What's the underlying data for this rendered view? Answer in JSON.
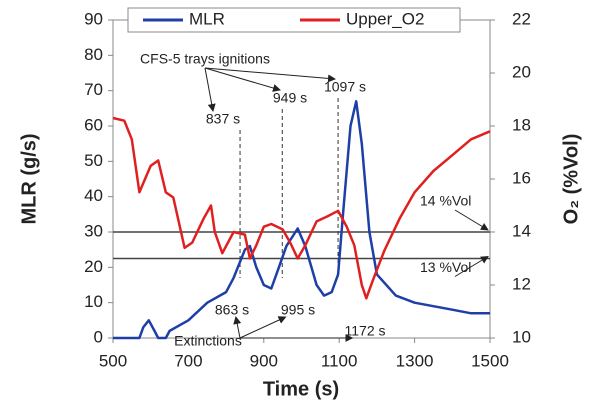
{
  "chart_data": {
    "type": "line",
    "xlabel": "Time (s)",
    "ylabel": "MLR (g/s)",
    "y2label": "O₂ (%Vol)",
    "xlim": [
      500,
      1500
    ],
    "xticks": [
      500,
      700,
      900,
      1100,
      1300,
      1500
    ],
    "ylim": [
      0,
      90
    ],
    "yticks": [
      0,
      10,
      20,
      30,
      40,
      50,
      60,
      70,
      80,
      90
    ],
    "y2lim": [
      10,
      22
    ],
    "y2ticks": [
      10,
      12,
      14,
      16,
      18,
      20,
      22
    ],
    "legend": "top",
    "series": [
      {
        "name": "MLR",
        "color": "#1f3fa8",
        "x": [
          500,
          570,
          580,
          595,
          610,
          620,
          640,
          650,
          700,
          750,
          800,
          820,
          850,
          863,
          880,
          900,
          920,
          940,
          960,
          990,
          1010,
          1040,
          1060,
          1080,
          1097,
          1110,
          1130,
          1145,
          1160,
          1180,
          1200,
          1250,
          1300,
          1350,
          1400,
          1450,
          1500
        ],
        "values": [
          0,
          0,
          3,
          5,
          2,
          0,
          0,
          2,
          5,
          10,
          13,
          17,
          25,
          26,
          20,
          15,
          14,
          20,
          26,
          31,
          26,
          15,
          12,
          13,
          18,
          35,
          60,
          67,
          55,
          30,
          18,
          12,
          10,
          9,
          8,
          7,
          7
        ]
      },
      {
        "name": "Upper_O2",
        "color": "#e02020",
        "axis": "y2",
        "x": [
          500,
          530,
          550,
          570,
          600,
          620,
          640,
          660,
          690,
          710,
          740,
          760,
          770,
          790,
          820,
          850,
          863,
          880,
          900,
          920,
          950,
          970,
          990,
          1010,
          1040,
          1070,
          1097,
          1120,
          1140,
          1160,
          1172,
          1190,
          1220,
          1260,
          1300,
          1350,
          1400,
          1450,
          1500
        ],
        "values": [
          18.3,
          18.2,
          17.5,
          15.5,
          16.5,
          16.7,
          15.5,
          15.3,
          13.4,
          13.6,
          14.5,
          15,
          14,
          13.2,
          14,
          13.9,
          13,
          13.5,
          14.2,
          14.3,
          14.1,
          13.6,
          13,
          13.5,
          14.4,
          14.6,
          14.8,
          14.2,
          13.5,
          12,
          11.5,
          12.2,
          13.3,
          14.5,
          15.5,
          16.3,
          16.9,
          17.5,
          17.8
        ]
      }
    ],
    "reference_lines": [
      {
        "value": 14,
        "label": "14 %Vol"
      },
      {
        "value": 13,
        "label": "13 %Vol"
      }
    ],
    "ignitions": {
      "label": "CFS-5 trays ignitions",
      "times": [
        837,
        949,
        1097
      ],
      "labels": [
        "837 s",
        "949 s",
        "1097 s"
      ]
    },
    "extinctions": {
      "label": "Extinctions",
      "times": [
        863,
        995,
        1172
      ],
      "labels": [
        "863 s",
        "995 s",
        "1172 s"
      ]
    }
  }
}
